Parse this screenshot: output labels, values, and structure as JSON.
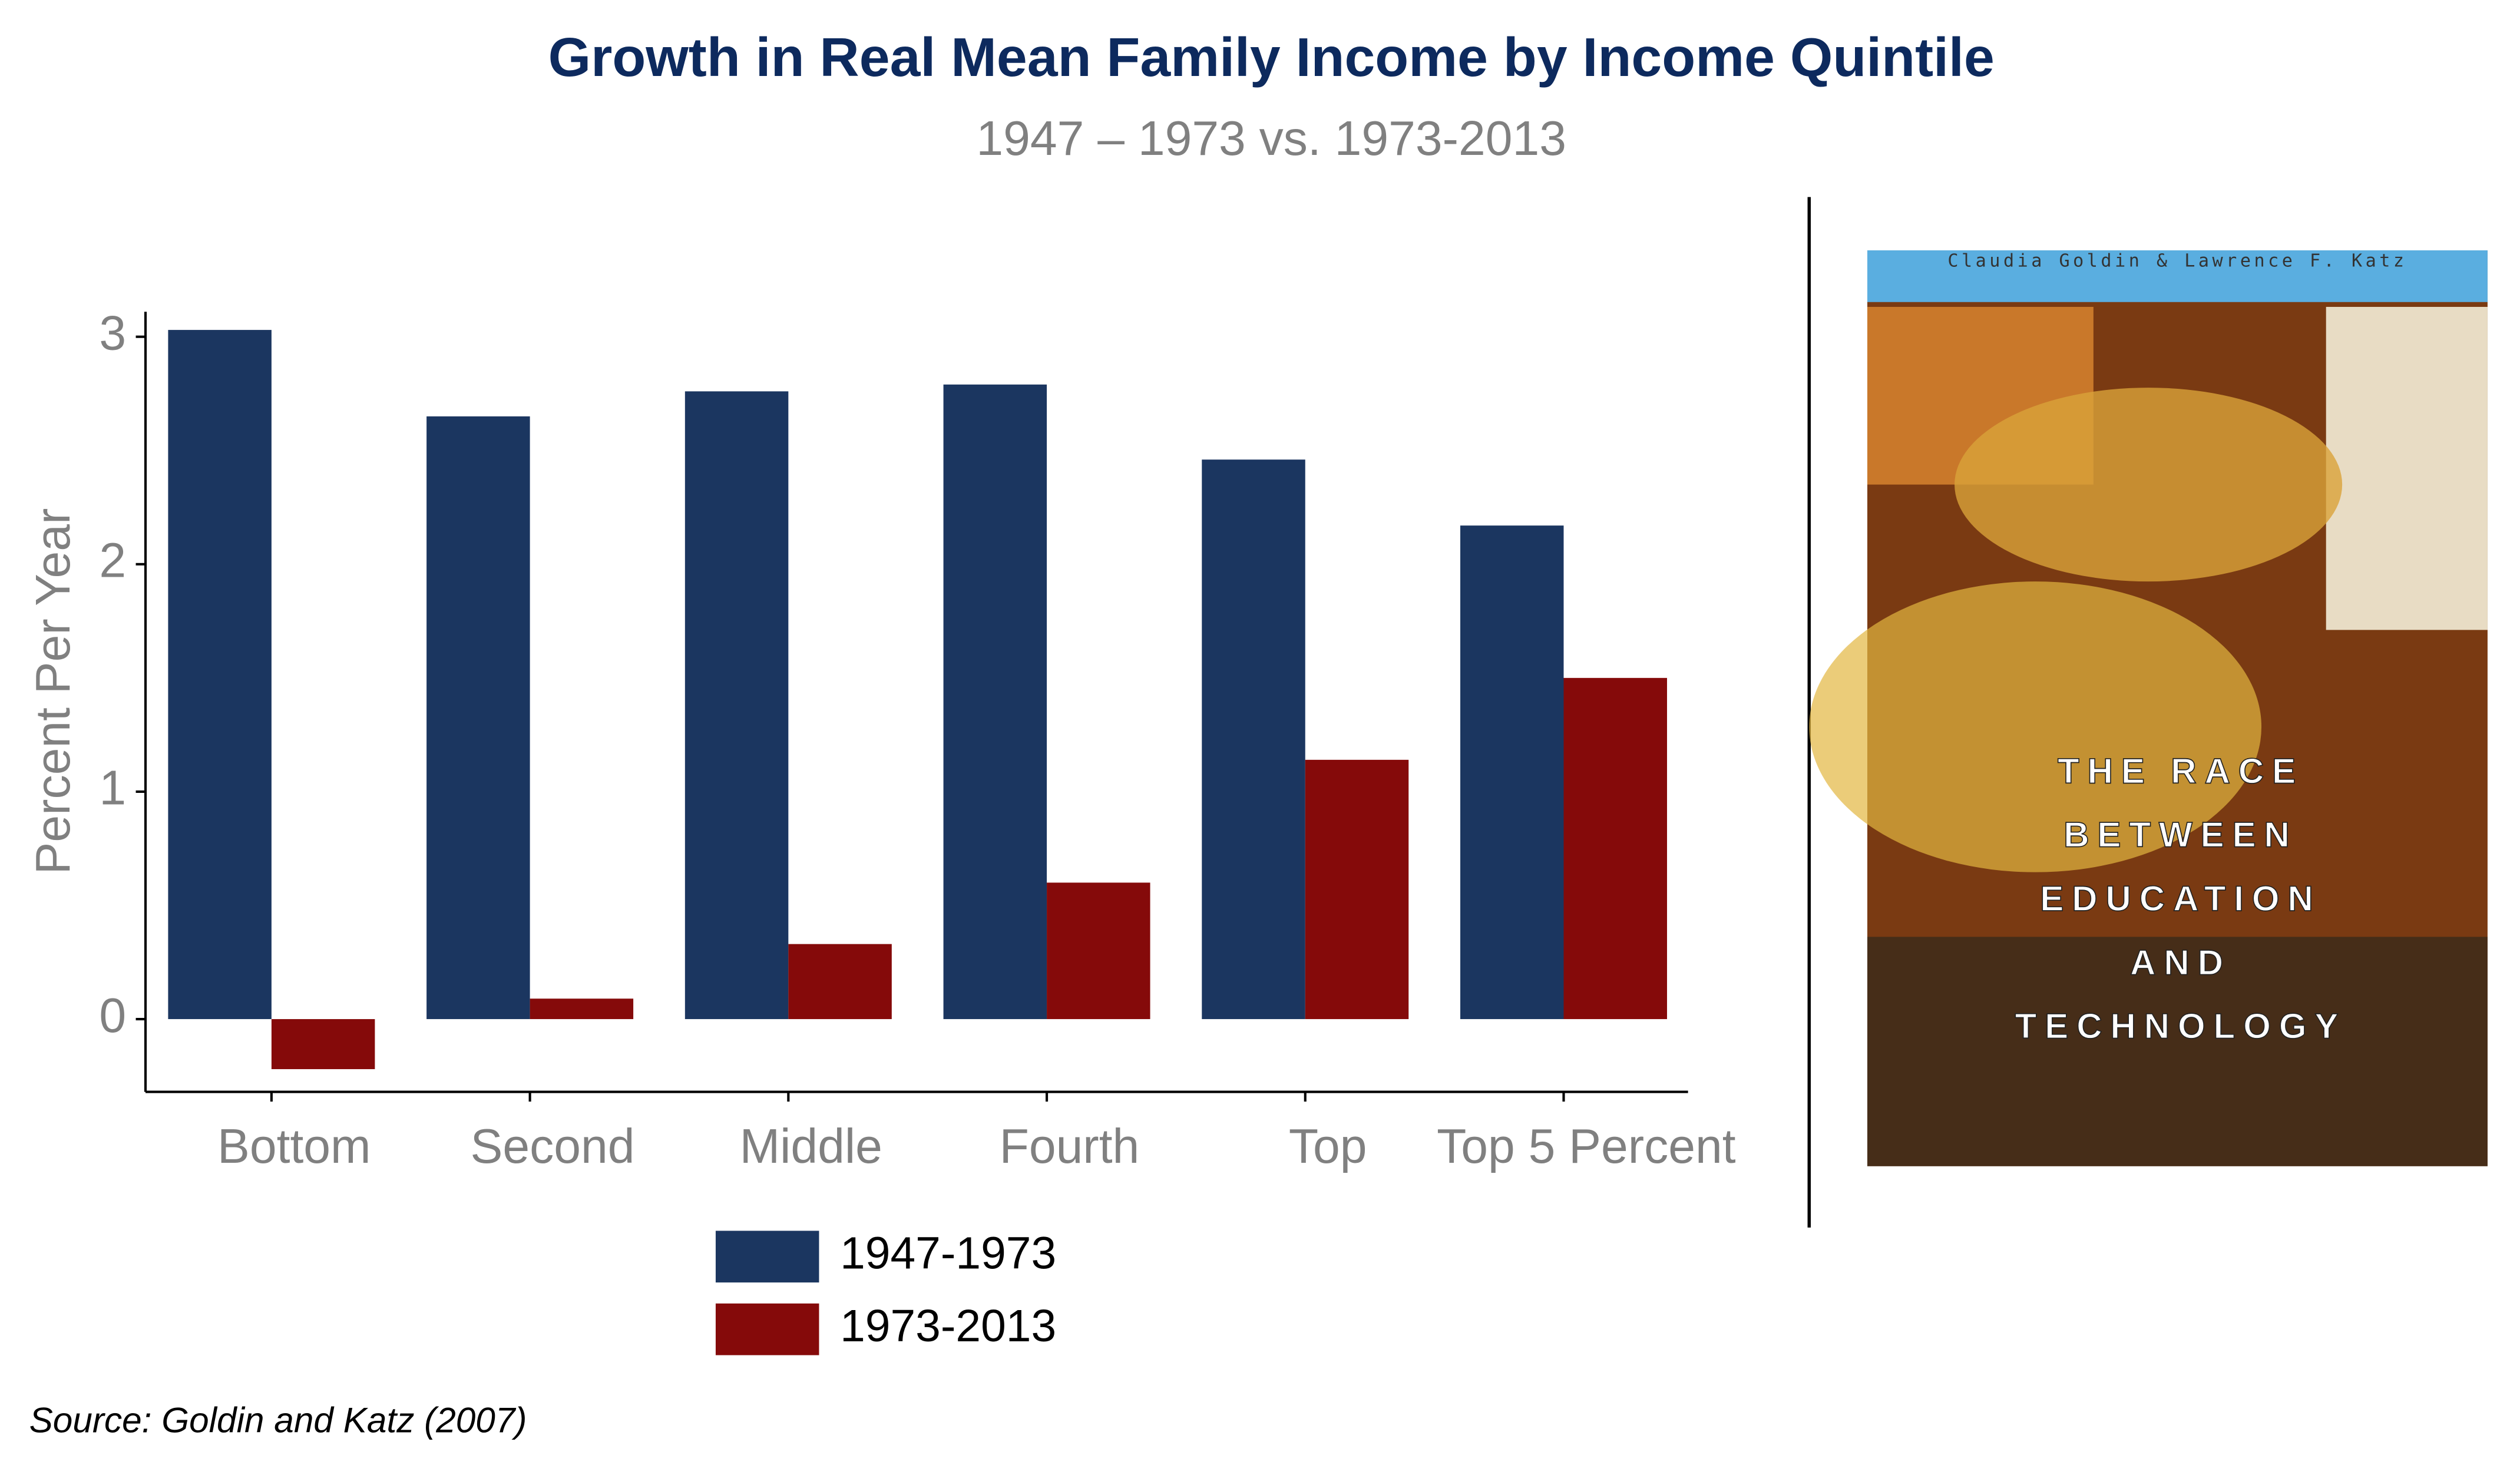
{
  "chart_data": {
    "type": "bar",
    "title": "Growth in Real Mean Family Income by Income Quintile",
    "subtitle": "1947 – 1973 vs. 1973-2013",
    "y_label": "Percent Per Year",
    "source": "Source: Goldin and Katz (2007)",
    "categories": [
      "Bottom",
      "Second",
      "Middle",
      "Fourth",
      "Top",
      "Top 5 Percent"
    ],
    "series": [
      {
        "name": "1947-1973",
        "color": "#1b3660",
        "values": [
          3.03,
          2.65,
          2.76,
          2.79,
          2.46,
          2.17
        ]
      },
      {
        "name": "1973-2013",
        "color": "#850a0a",
        "values": [
          -0.22,
          0.09,
          0.33,
          0.6,
          1.14,
          1.5
        ]
      }
    ],
    "ylim": [
      -0.32,
      3.11
    ],
    "yticks": [
      0,
      1,
      2,
      3
    ],
    "grid": false,
    "legend": "bottom"
  },
  "book": {
    "authors": "Claudia Goldin & Lawrence F. Katz",
    "title_lines": [
      "THE RACE",
      "BETWEEN",
      "EDUCATION",
      "AND",
      "TECHNOLOGY"
    ]
  }
}
